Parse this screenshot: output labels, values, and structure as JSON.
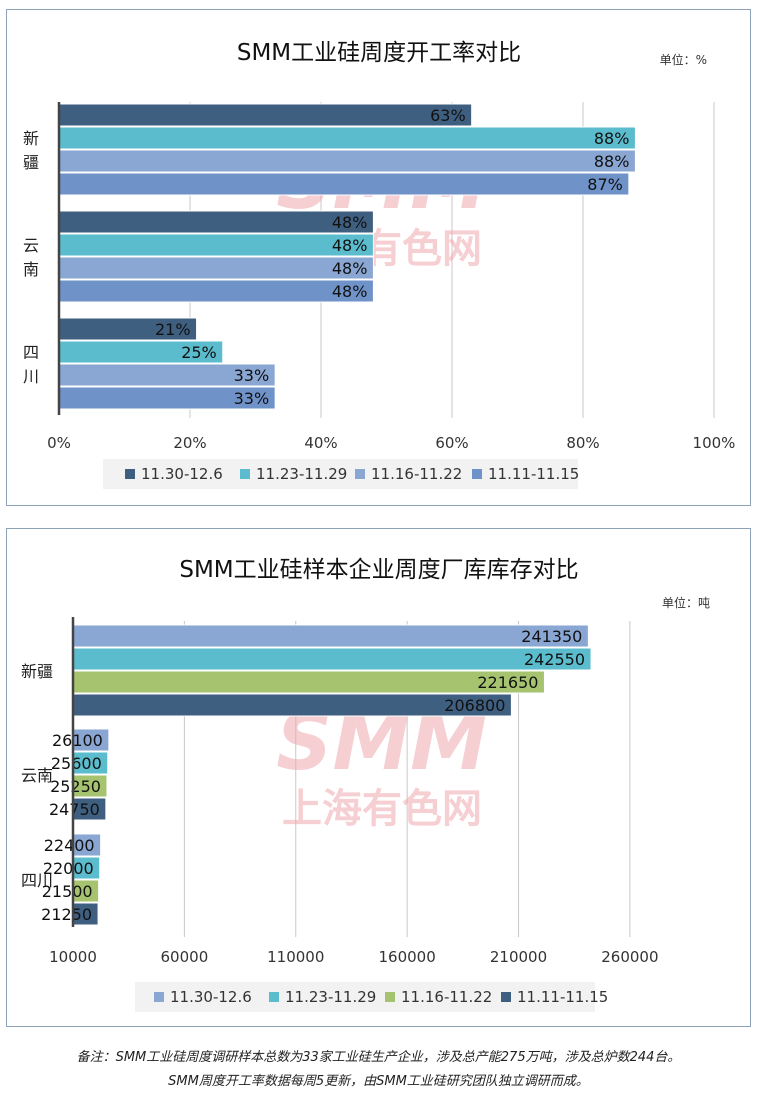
{
  "watermark": {
    "top": "SMM",
    "bottom": "上海有色网",
    "color": "#f0a8b0"
  },
  "footnote": {
    "line1": "备注：SMM工业硅周度调研样本总数为33家工业硅生产企业，涉及总产能275万吨，涉及总炉数244台。",
    "line2": "SMM周度开工率数据每周5更新，由SMM工业硅研究团队独立调研而成。"
  },
  "chart_data": [
    {
      "type": "bar",
      "orientation": "horizontal",
      "title": "SMM工业硅周度开工率对比",
      "unit_label": "单位：%",
      "categories": [
        [
          "新",
          "疆"
        ],
        [
          "云",
          "南"
        ],
        [
          "四",
          "川"
        ]
      ],
      "xlim": [
        0,
        100
      ],
      "xticks": [
        0,
        20,
        40,
        60,
        80,
        100
      ],
      "tick_suffix": "%",
      "grid": true,
      "legend_position": "bottom",
      "series": [
        {
          "name": "11.30-12.6",
          "color": "#3f5f80",
          "values": [
            63,
            48,
            21
          ],
          "labels": [
            "63%",
            "48%",
            "21%"
          ]
        },
        {
          "name": "11.23-11.29",
          "color": "#5bbccd",
          "values": [
            88,
            48,
            25
          ],
          "labels": [
            "88%",
            "48%",
            "25%"
          ]
        },
        {
          "name": "11.16-11.22",
          "color": "#8aa6d2",
          "values": [
            88,
            48,
            33
          ],
          "labels": [
            "88%",
            "48%",
            "33%"
          ]
        },
        {
          "name": "11.11-11.15",
          "color": "#6f92c9",
          "values": [
            87,
            48,
            33
          ],
          "labels": [
            "87%",
            "48%",
            "33%"
          ]
        }
      ]
    },
    {
      "type": "bar",
      "orientation": "horizontal",
      "title": "SMM工业硅样本企业周度厂库库存对比",
      "unit_label": "单位：吨",
      "categories": [
        [
          "新疆"
        ],
        [
          "云南"
        ],
        [
          "四川"
        ]
      ],
      "xlim": [
        10000,
        300000
      ],
      "xticks": [
        10000,
        60000,
        110000,
        160000,
        210000,
        260000
      ],
      "tick_suffix": "",
      "grid": true,
      "legend_position": "bottom",
      "series": [
        {
          "name": "11.30-12.6",
          "color": "#8aa6d2",
          "values": [
            241350,
            26100,
            22400
          ],
          "labels": [
            "241350",
            "26100",
            "22400"
          ]
        },
        {
          "name": "11.23-11.29",
          "color": "#5bbccd",
          "values": [
            242550,
            25600,
            22000
          ],
          "labels": [
            "242550",
            "25600",
            "22000"
          ]
        },
        {
          "name": "11.16-11.22",
          "color": "#a6c46f",
          "values": [
            221650,
            25250,
            21500
          ],
          "labels": [
            "221650",
            "25250",
            "21500"
          ]
        },
        {
          "name": "11.11-11.15",
          "color": "#3f5f80",
          "values": [
            206800,
            24750,
            21250
          ],
          "labels": [
            "206800",
            "24750",
            "21250"
          ]
        }
      ]
    }
  ]
}
